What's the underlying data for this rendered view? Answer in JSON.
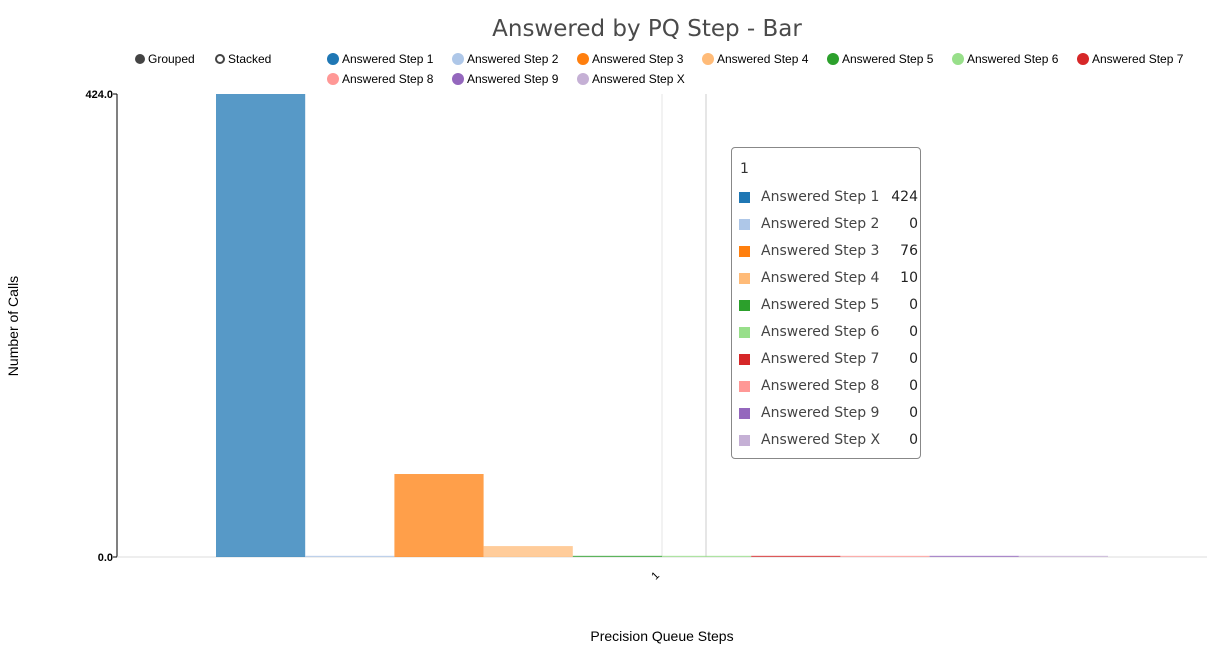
{
  "chart_data": {
    "type": "bar",
    "title": "Answered by PQ Step - Bar",
    "xlabel": "Precision Queue Steps",
    "ylabel": "Number of Calls",
    "categories": [
      "1"
    ],
    "ylim": [
      0,
      424
    ],
    "y_ticks": [
      "424.0",
      "0.0"
    ],
    "x_tick_labels": [
      "1"
    ],
    "mode_options": [
      "Grouped",
      "Stacked"
    ],
    "selected_mode": "Grouped",
    "series": [
      {
        "name": "Answered Step 1",
        "color": "#1f77b4",
        "values": [
          424
        ]
      },
      {
        "name": "Answered Step 2",
        "color": "#aec7e8",
        "values": [
          0
        ]
      },
      {
        "name": "Answered Step 3",
        "color": "#ff7f0e",
        "values": [
          76
        ]
      },
      {
        "name": "Answered Step 4",
        "color": "#ffbb78",
        "values": [
          10
        ]
      },
      {
        "name": "Answered Step 5",
        "color": "#2ca02c",
        "values": [
          0
        ]
      },
      {
        "name": "Answered Step 6",
        "color": "#98df8a",
        "values": [
          0
        ]
      },
      {
        "name": "Answered Step 7",
        "color": "#d62728",
        "values": [
          0
        ]
      },
      {
        "name": "Answered Step 8",
        "color": "#ff9896",
        "values": [
          0
        ]
      },
      {
        "name": "Answered Step 9",
        "color": "#9467bd",
        "values": [
          0
        ]
      },
      {
        "name": "Answered Step X",
        "color": "#c5b0d5",
        "values": [
          0
        ]
      }
    ],
    "legend_placement": "top",
    "grid": false,
    "tooltip": {
      "title": "1",
      "values": [
        "424",
        "0",
        "76",
        "10",
        "0",
        "0",
        "0",
        "0",
        "0",
        "0"
      ]
    }
  }
}
